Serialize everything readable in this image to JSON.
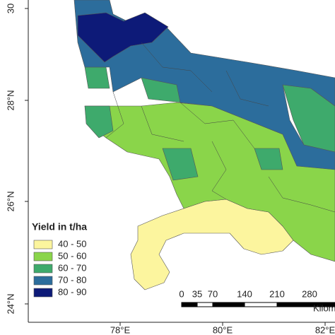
{
  "map": {
    "y_axis_labels": [
      "30",
      "28°N",
      "26°N",
      "24°N"
    ],
    "x_axis_labels": [
      "78°E",
      "80°E",
      "82°E"
    ],
    "legend": {
      "title": "Yield in t/ha",
      "items": [
        {
          "label": "40 - 50",
          "color": "#fcf59e"
        },
        {
          "label": "50 - 60",
          "color": "#8ad54a"
        },
        {
          "label": "60 - 70",
          "color": "#3eaa6c"
        },
        {
          "label": "70 - 80",
          "color": "#2c6d9c"
        },
        {
          "label": "80 - 90",
          "color": "#0d1a78"
        }
      ]
    },
    "scale_bar": {
      "labels": [
        "0",
        "35",
        "70",
        "140",
        "210",
        "280"
      ],
      "unit": "Kilom"
    }
  }
}
